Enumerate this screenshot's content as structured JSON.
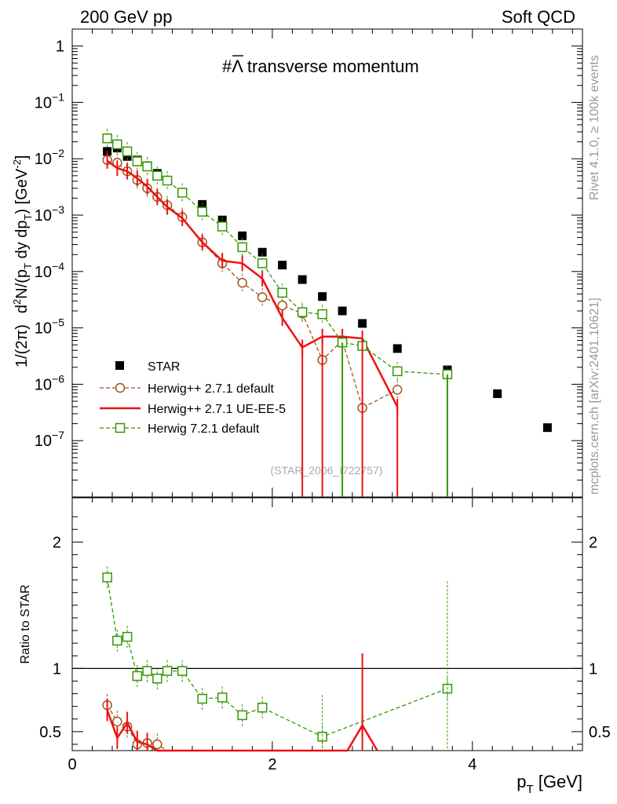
{
  "header": {
    "left": "200 GeV pp",
    "right": "Soft QCD"
  },
  "side_text": {
    "rivet": "Rivet 4.1.0, ≥ 100k events",
    "mcplots": "mcplots.cern.ch [arXiv:2401.10621]"
  },
  "chart_data": [
    {
      "type": "scatter",
      "panel": "main",
      "title": "#Λ̄ transverse momentum",
      "title_prefix": "#",
      "title_symbol": "Λ",
      "title_suffix": " transverse momentum",
      "watermark": "(STAR_2006_I722757)",
      "xlabel": "p_T [GeV]",
      "ylabel": "1/(2π) d²N/(p_T dy dp_T) [GeV⁻²]",
      "ylabel_parts": {
        "a": "1/(2π)",
        "b": "d",
        "c": "2",
        "d": "N/(p",
        "e": "T",
        "f": " dy dp",
        "g": "T",
        "h": ") [GeV",
        "i": "-2",
        "j": "]"
      },
      "yscale": "log",
      "xlim": [
        0,
        5.1
      ],
      "ylim": [
        1e-08,
        2
      ],
      "yticks": [
        {
          "v": 1,
          "base": "1",
          "exp": ""
        },
        {
          "v": 0.1,
          "base": "10",
          "exp": "−1"
        },
        {
          "v": 0.01,
          "base": "10",
          "exp": "−2"
        },
        {
          "v": 0.001,
          "base": "10",
          "exp": "−3"
        },
        {
          "v": 0.0001,
          "base": "10",
          "exp": "−4"
        },
        {
          "v": 1e-05,
          "base": "10",
          "exp": "−5"
        },
        {
          "v": 1e-06,
          "base": "10",
          "exp": "−6"
        },
        {
          "v": 1e-07,
          "base": "10",
          "exp": "−7"
        }
      ],
      "series": [
        {
          "name": "STAR",
          "style": "data",
          "color": "#000000",
          "x": [
            0.35,
            0.45,
            0.55,
            0.65,
            0.75,
            0.85,
            0.95,
            1.1,
            1.3,
            1.5,
            1.7,
            1.9,
            2.1,
            2.3,
            2.5,
            2.7,
            2.9,
            3.25,
            3.75,
            4.25,
            4.75
          ],
          "y": [
            0.0135,
            0.0155,
            0.011,
            0.0095,
            0.0075,
            0.0055,
            0.0041,
            0.0025,
            0.00155,
            0.00082,
            0.00043,
            0.00022,
            0.00013,
            7.2e-05,
            3.6e-05,
            2e-05,
            1.2e-05,
            4.3e-06,
            1.8e-06,
            6.8e-07,
            1.7e-07
          ]
        },
        {
          "name": "Herwig++ 2.7.1 default",
          "style": "circle-dashed",
          "color": "#a0561e",
          "x": [
            0.35,
            0.45,
            0.55,
            0.65,
            0.75,
            0.85,
            0.95,
            1.1,
            1.3,
            1.5,
            1.7,
            1.9,
            2.1,
            2.3,
            2.5,
            2.7,
            2.9,
            3.25
          ],
          "y": [
            0.0095,
            0.0085,
            0.006,
            0.0042,
            0.003,
            0.0021,
            0.0015,
            0.00092,
            0.00033,
            0.00014,
            6.3e-05,
            3.5e-05,
            2.5e-05,
            1.8e-05,
            2.7e-06,
            6e-06,
            3.8e-07,
            8e-07
          ]
        },
        {
          "name": "Herwig++ 2.7.1 UE-EE-5",
          "style": "solid",
          "color": "#ee1111",
          "x": [
            0.35,
            0.45,
            0.55,
            0.65,
            0.75,
            0.85,
            0.95,
            1.1,
            1.3,
            1.5,
            1.7,
            1.9,
            2.1,
            2.3,
            2.5,
            2.7,
            2.9,
            3.25
          ],
          "y": [
            0.0092,
            0.0068,
            0.006,
            0.0045,
            0.0032,
            0.0021,
            0.0014,
            0.00088,
            0.00033,
            0.000155,
            0.00014,
            7.5e-05,
            1.5e-05,
            4.5e-06,
            7e-06,
            7e-06,
            6.5e-06,
            4e-07
          ]
        },
        {
          "name": "Herwig 7.2.1 default",
          "style": "square-dashed",
          "color": "#339900",
          "x": [
            0.35,
            0.45,
            0.55,
            0.65,
            0.75,
            0.85,
            0.95,
            1.1,
            1.3,
            1.5,
            1.7,
            1.9,
            2.1,
            2.3,
            2.5,
            2.7,
            2.9,
            3.25,
            3.75
          ],
          "y": [
            0.023,
            0.018,
            0.0135,
            0.009,
            0.0073,
            0.005,
            0.0041,
            0.0025,
            0.00115,
            0.00063,
            0.00027,
            0.00014,
            4.2e-05,
            1.9e-05,
            1.75e-05,
            5.5e-06,
            4.8e-06,
            1.7e-06,
            1.5e-06
          ]
        }
      ]
    },
    {
      "type": "line",
      "panel": "ratio",
      "ylabel": "Ratio to STAR",
      "xlabel": "p_T [GeV]",
      "xlabel_parts": {
        "a": "p",
        "b": "T",
        "c": " [GeV]"
      },
      "xlim": [
        0,
        5.1
      ],
      "ylim": [
        0.35,
        2.35
      ],
      "xticks": [
        0,
        2,
        4
      ],
      "yticks": [
        0.5,
        1,
        2
      ],
      "reference_line": 1,
      "series": [
        {
          "name": "Herwig++ 2.7.1 default",
          "color": "#a0561e",
          "x": [
            0.35,
            0.45,
            0.55,
            0.65,
            0.75,
            0.85,
            0.95
          ],
          "y": [
            0.71,
            0.58,
            0.54,
            0.4,
            0.41,
            0.4,
            0.35
          ]
        },
        {
          "name": "Herwig++ 2.7.1 UE-EE-5",
          "color": "#ee1111",
          "x": [
            0.35,
            0.45,
            0.55,
            0.65,
            0.75,
            0.85,
            2.75,
            2.9,
            3.05
          ],
          "y": [
            0.67,
            0.45,
            0.57,
            0.42,
            0.4,
            0.32,
            0.32,
            0.55,
            0.32
          ]
        },
        {
          "name": "Herwig 7.2.1 default",
          "color": "#339900",
          "x": [
            0.35,
            0.45,
            0.55,
            0.65,
            0.75,
            0.85,
            0.95,
            1.1,
            1.3,
            1.5,
            1.7,
            1.9,
            2.5,
            3.75
          ],
          "y": [
            1.72,
            1.22,
            1.25,
            0.94,
            0.98,
            0.92,
            0.98,
            0.98,
            0.76,
            0.77,
            0.63,
            0.69,
            0.46,
            0.84
          ]
        }
      ]
    }
  ]
}
